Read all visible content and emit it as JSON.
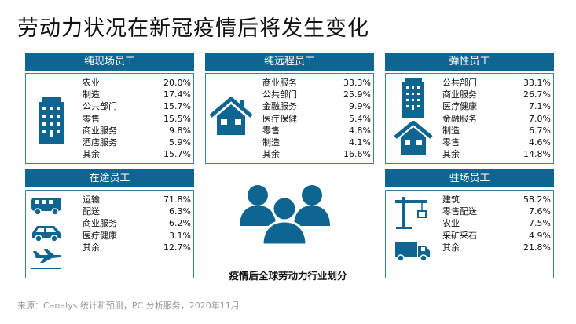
{
  "title": "劳动力状况在新冠疫情后将发生变化",
  "accent": "#0f6591",
  "panels": [
    {
      "header": "纯现场员工",
      "rows": [
        [
          "农业",
          "20.0%"
        ],
        [
          "制造",
          "17.4%"
        ],
        [
          "公共部门",
          "15.7%"
        ],
        [
          "零售",
          "15.5%"
        ],
        [
          "商业服务",
          "9.8%"
        ],
        [
          "酒店服务",
          "5.9%"
        ],
        [
          "其余",
          "15.7%"
        ]
      ]
    },
    {
      "header": "纯远程员工",
      "rows": [
        [
          "商业服务",
          "33.3%"
        ],
        [
          "公共部门",
          "25.9%"
        ],
        [
          "金融服务",
          "9.9%"
        ],
        [
          "医疗保健",
          "5.4%"
        ],
        [
          "零售",
          "4.8%"
        ],
        [
          "制造",
          "4.1%"
        ],
        [
          "其余",
          "16.6%"
        ]
      ]
    },
    {
      "header": "弹性员工",
      "rows": [
        [
          "公共部门",
          "33.1%"
        ],
        [
          "商业服务",
          "26.7%"
        ],
        [
          "医疗健康",
          "7.1%"
        ],
        [
          "金融服务",
          "7.0%"
        ],
        [
          "制造",
          "6.7%"
        ],
        [
          "零售",
          "4.6%"
        ],
        [
          "其余",
          "14.8%"
        ]
      ]
    },
    {
      "header": "在途员工",
      "rows": [
        [
          "运输",
          "71.8%"
        ],
        [
          "配送",
          "6.3%"
        ],
        [
          "商业服务",
          "6.2%"
        ],
        [
          "医疗健康",
          "3.1%"
        ],
        [
          "其余",
          "12.7%"
        ]
      ]
    },
    {
      "header": "驻场员工",
      "rows": [
        [
          "建筑",
          "58.2%"
        ],
        [
          "零售配送",
          "7.6%"
        ],
        [
          "农业",
          "7.5%"
        ],
        [
          "采矿采石",
          "4.9%"
        ],
        [
          "其余",
          "21.8%"
        ]
      ]
    }
  ],
  "caption": "疫情后全球劳动力行业划分",
  "source": "来源：Canalys 统计和预测，PC 分析服务，2020年11月"
}
